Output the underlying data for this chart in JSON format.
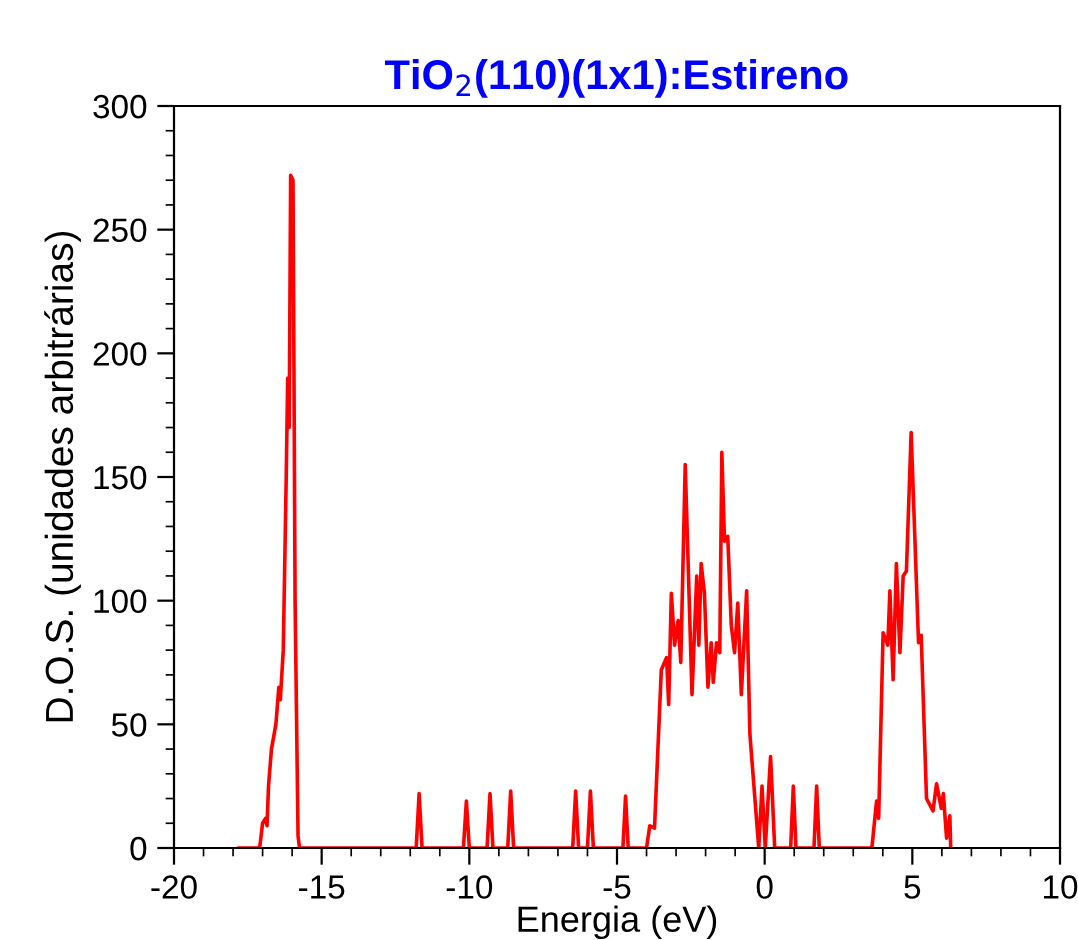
{
  "chart_data": {
    "type": "line",
    "title": "TiO$_{2}$(110)(1x1):Estireno",
    "xlabel": "Energia (eV)",
    "ylabel": "D.O.S. (unidades arbitrárias)",
    "series": [
      {
        "color": "#ff0000",
        "x": [
          -17.8,
          -17.1,
          -17.0,
          -16.9,
          -16.85,
          -16.8,
          -16.7,
          -16.55,
          -16.45,
          -16.4,
          -16.3,
          -16.2,
          -16.15,
          -16.1,
          -16.05,
          -15.97,
          -15.9,
          -15.8,
          -15.75,
          -11.8,
          -11.7,
          -11.6,
          -10.2,
          -10.1,
          -10.0,
          -9.4,
          -9.3,
          -9.2,
          -8.7,
          -8.6,
          -8.5,
          -6.5,
          -6.4,
          -6.3,
          -6.0,
          -5.9,
          -5.8,
          -4.8,
          -4.71,
          -4.62,
          -4.0,
          -3.89,
          -3.73,
          -3.5,
          -3.32,
          -3.25,
          -3.16,
          -3.05,
          -2.93,
          -2.84,
          -2.69,
          -2.46,
          -2.3,
          -2.23,
          -2.15,
          -2.04,
          -1.92,
          -1.81,
          -1.74,
          -1.63,
          -1.52,
          -1.45,
          -1.36,
          -1.25,
          -1.13,
          -1.02,
          -0.91,
          -0.79,
          -0.61,
          -0.5,
          -0.2,
          -0.09,
          0.02,
          0.2,
          0.34,
          0.88,
          0.97,
          1.06,
          1.67,
          1.76,
          1.85,
          3.63,
          3.79,
          3.86,
          4.01,
          4.17,
          4.24,
          4.35,
          4.46,
          4.58,
          4.69,
          4.8,
          4.96,
          5.21,
          5.3,
          5.48,
          5.7,
          5.82,
          5.98,
          6.05,
          6.16,
          6.27,
          6.3
        ],
        "values": [
          0,
          0,
          10,
          12,
          9,
          25,
          40,
          50,
          65,
          60,
          80,
          150,
          190,
          170,
          272,
          270,
          100,
          5,
          0,
          0,
          22,
          0,
          0,
          19,
          0,
          0,
          22,
          0,
          0,
          23,
          0,
          0,
          23,
          0,
          0,
          23,
          0,
          0,
          21,
          0,
          0,
          9,
          8,
          72,
          77,
          58,
          103,
          82,
          92,
          75,
          155,
          62,
          110,
          82,
          115,
          103,
          65,
          83,
          67,
          83,
          79,
          160,
          124,
          126,
          90,
          79,
          99,
          62,
          104,
          46,
          0,
          25,
          0,
          37,
          0,
          0,
          25,
          0,
          0,
          25,
          0,
          0,
          19,
          12,
          87,
          82,
          104,
          68,
          115,
          79,
          110,
          112,
          168,
          83,
          86,
          20,
          15,
          26,
          16,
          22,
          4,
          13,
          0
        ]
      }
    ],
    "xlim": [
      -20,
      10
    ],
    "xticks": [
      -20,
      -15,
      -10,
      -5,
      0,
      5,
      10
    ],
    "ylim": [
      0,
      300
    ],
    "yticks": [
      0,
      50,
      100,
      150,
      200,
      250,
      300
    ],
    "grid": false,
    "legend": false
  }
}
